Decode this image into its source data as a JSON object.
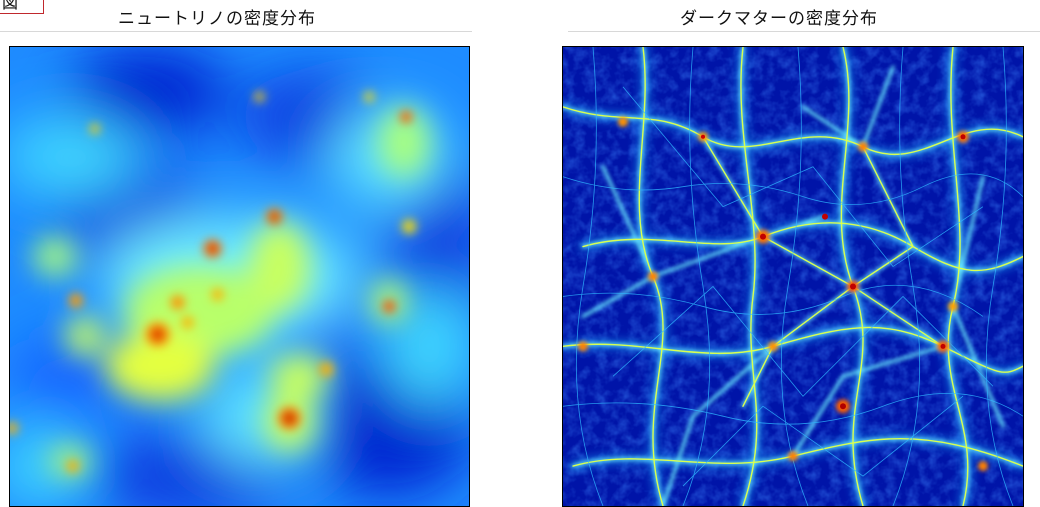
{
  "figure": {
    "tag": "図"
  },
  "panels": [
    {
      "title": "ニュートリノの密度分布",
      "image_description_name": "neutrino-density-map"
    },
    {
      "title": "ダークマターの密度分布",
      "image_description_name": "dark-matter-density-map"
    }
  ],
  "colors": {
    "colormap_low": "#0019c8",
    "colormap_mid_low": "#00a0ff",
    "colormap_mid": "#7fffa0",
    "colormap_mid_high": "#ffe400",
    "colormap_high": "#c00000",
    "frame": "#000000",
    "tag_border": "#c0282d"
  }
}
